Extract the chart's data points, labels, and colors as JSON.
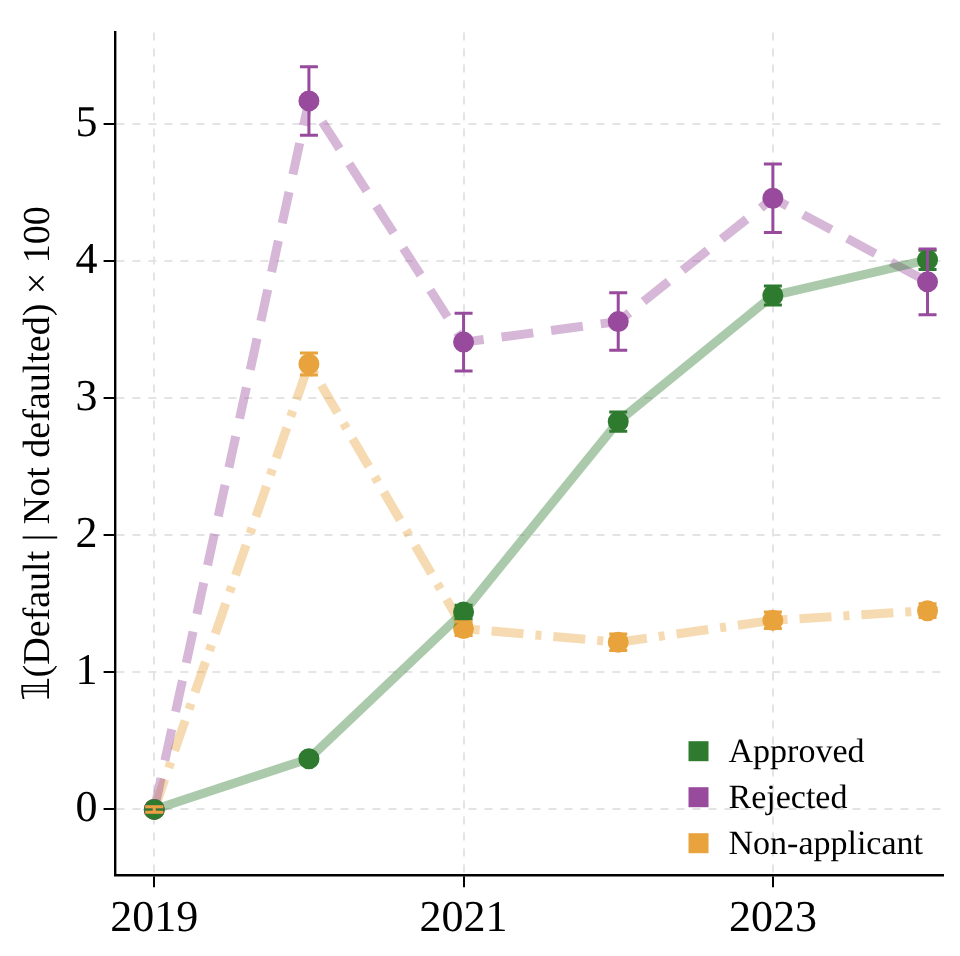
{
  "chart_data": {
    "type": "line",
    "ylabel": "𝟙(Default | Not defaulted) × 100",
    "x": [
      2019,
      2020,
      2021,
      2022,
      2023,
      2024
    ],
    "xlim": [
      2018.75,
      2024.1
    ],
    "xticks": [
      2019,
      2021,
      2023
    ],
    "ylim": [
      -0.48,
      5.67
    ],
    "yticks": [
      0,
      1,
      2,
      3,
      4,
      5
    ],
    "grid": true,
    "legend": "bottom right",
    "marker": "circle",
    "series": [
      {
        "name": "Approved",
        "color": "#2e7a2e",
        "line_style": "solid",
        "values": [
          0,
          0.37,
          1.44,
          2.83,
          3.75,
          4.01
        ],
        "errors": [
          0.02,
          0.03,
          0.05,
          0.07,
          0.07,
          0.07
        ]
      },
      {
        "name": "Rejected",
        "color": "#984a9c",
        "line_style": "dashed",
        "values": [
          0,
          5.17,
          3.41,
          3.56,
          4.46,
          3.85
        ],
        "errors": [
          0.02,
          0.25,
          0.21,
          0.21,
          0.25,
          0.24
        ]
      },
      {
        "name": "Non-applicant",
        "color": "#e8a33c",
        "line_style": "dashdot",
        "values": [
          0,
          3.25,
          1.32,
          1.22,
          1.38,
          1.45
        ],
        "errors": [
          0.02,
          0.08,
          0.05,
          0.06,
          0.06,
          0.05
        ]
      }
    ]
  }
}
